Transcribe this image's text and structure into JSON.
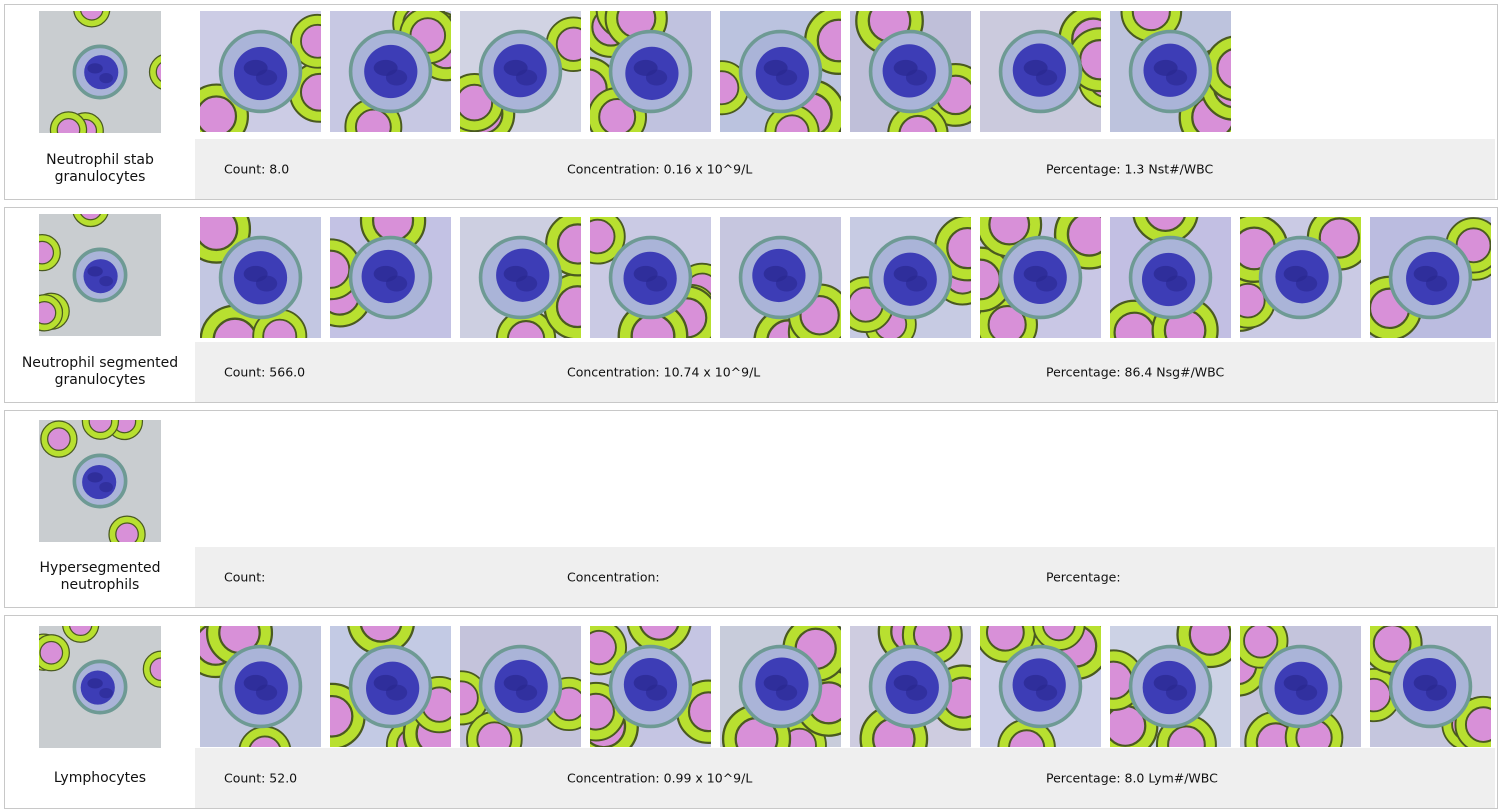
{
  "panels": [
    {
      "label": "Neutrophil stab\ngranulocytes",
      "count": "Count: 8.0",
      "concentration": "Concentration: 0.16 x 10^9/L",
      "percentage": "Percentage: 1.3 Nst#/WBC"
    },
    {
      "label": "Neutrophil segmented\ngranulocytes",
      "count": "Count: 566.0",
      "concentration": "Concentration: 10.74 x 10^9/L",
      "percentage": "Percentage: 86.4 Nsg#/WBC"
    },
    {
      "label": "Hypersegmented\nneutrophils",
      "count": "Count:",
      "concentration": "Concentration:",
      "percentage": "Percentage:"
    },
    {
      "label": "Lymphocytes",
      "count": "Count: 52.0",
      "concentration": "Concentration: 0.99 x 10^9/L",
      "percentage": "Percentage: 8.0 Lym#/WBC"
    }
  ]
}
